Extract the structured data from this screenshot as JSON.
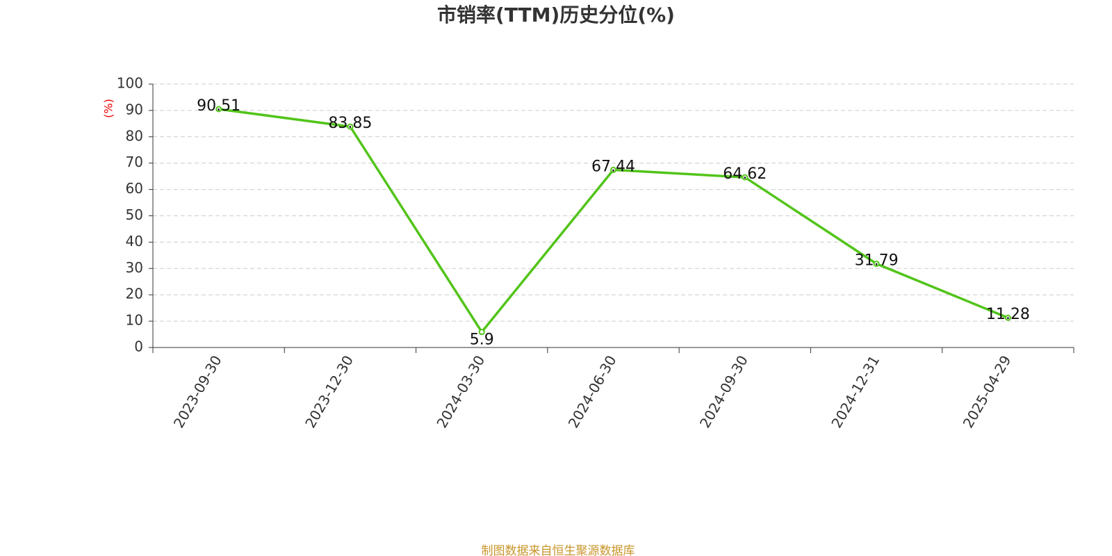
{
  "chart_data": {
    "type": "line",
    "title": "市销率(TTM)历史分位(%)",
    "y_label": "(%)",
    "source": "制图数据来自恒生聚源数据库",
    "categories": [
      "2023-09-30",
      "2023-12-30",
      "2024-03-30",
      "2024-06-30",
      "2024-09-30",
      "2024-12-31",
      "2025-04-29"
    ],
    "series": [
      {
        "name": "市销率(TTM)历史分位",
        "color": "#52c41a",
        "values": [
          90.51,
          83.85,
          5.9,
          67.44,
          64.62,
          31.79,
          11.28
        ]
      }
    ],
    "ylim": [
      0,
      100
    ],
    "yticks": [
      0,
      10,
      20,
      30,
      40,
      50,
      60,
      70,
      80,
      90,
      100
    ],
    "grid": true
  }
}
